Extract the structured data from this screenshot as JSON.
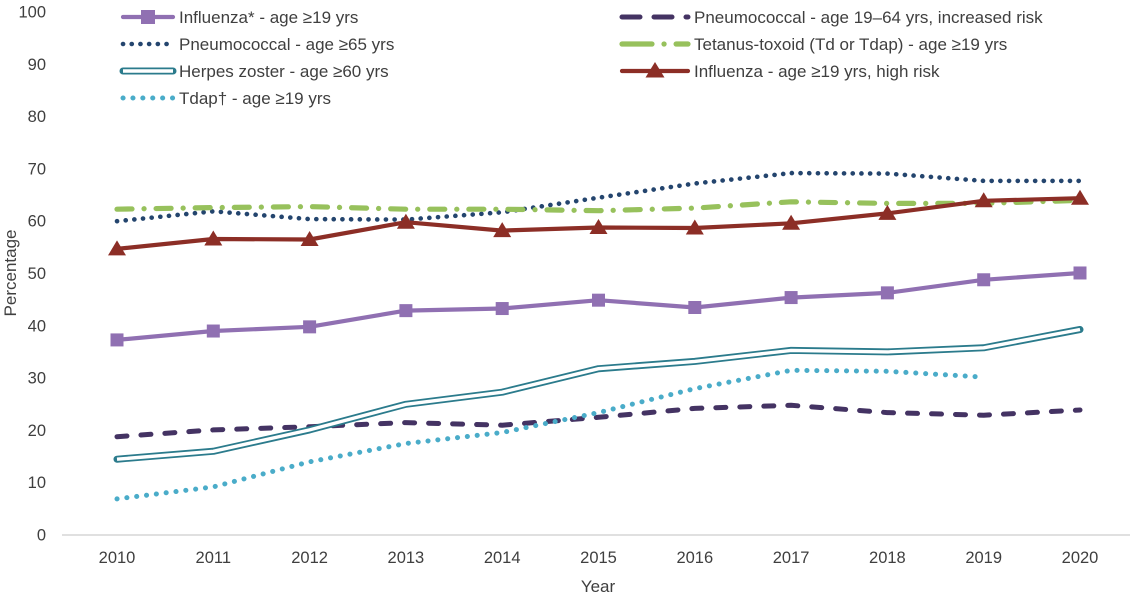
{
  "chart_data": {
    "type": "line",
    "title": "",
    "xlabel": "Year",
    "ylabel": "Percentage",
    "x": [
      2010,
      2011,
      2012,
      2013,
      2014,
      2015,
      2016,
      2017,
      2018,
      2019,
      2020
    ],
    "ylim": [
      0,
      100
    ],
    "yticks": [
      0,
      10,
      20,
      30,
      40,
      50,
      60,
      70,
      80,
      90,
      100
    ],
    "grid": false,
    "legend_position": "top-two-columns",
    "axis_color": "#D6D6D6",
    "text_color": "#3F3F3F",
    "series": [
      {
        "name": "Influenza* - age ≥19 yrs",
        "color": "#9070B2",
        "line_style": "solid",
        "marker": "square",
        "z": 4,
        "values": [
          37.3,
          39.0,
          39.8,
          42.9,
          43.3,
          44.9,
          43.5,
          45.4,
          46.3,
          48.8,
          50.1
        ]
      },
      {
        "name": "Pneumococcal - age ≥65 yrs",
        "color": "#24456E",
        "line_style": "round-dot",
        "marker": "none",
        "z": 1,
        "values": [
          60.0,
          61.9,
          60.4,
          60.3,
          61.7,
          64.5,
          67.2,
          69.2,
          69.1,
          67.7,
          67.7
        ]
      },
      {
        "name": "Herpes zoster - age ≥60 yrs",
        "color": "#2B7B8C",
        "line_style": "double-line",
        "marker": "none",
        "z": 6,
        "values": [
          14.5,
          16.0,
          20.1,
          25.0,
          27.3,
          31.8,
          33.2,
          35.3,
          35.0,
          35.8,
          39.3
        ]
      },
      {
        "name": "Tdap† - age ≥19 yrs",
        "color": "#4AACC9",
        "line_style": "round-dot-large",
        "marker": "none",
        "z": 7,
        "values": [
          6.9,
          9.2,
          14.0,
          17.5,
          19.6,
          23.4,
          28.0,
          31.5,
          31.3,
          30.2,
          null
        ]
      },
      {
        "name": "Pneumococcal - age 19–64 yrs, increased risk",
        "color": "#443363",
        "line_style": "dash",
        "marker": "none",
        "z": 5,
        "values": [
          18.8,
          20.1,
          20.7,
          21.5,
          21.0,
          22.5,
          24.2,
          24.8,
          23.4,
          22.9,
          23.9
        ]
      },
      {
        "name": "Tetanus-toxoid (Td or Tdap) - age ≥19 yrs",
        "color": "#97C15C",
        "line_style": "dash-dot",
        "marker": "none",
        "z": 2,
        "values": [
          62.3,
          62.6,
          62.8,
          62.3,
          62.3,
          62.0,
          62.5,
          63.7,
          63.4,
          63.4,
          64.0
        ]
      },
      {
        "name": "Influenza - age ≥19 yrs, high risk",
        "color": "#8C2E26",
        "line_style": "solid",
        "marker": "triangle",
        "z": 3,
        "values": [
          54.7,
          56.6,
          56.5,
          59.8,
          58.2,
          58.8,
          58.7,
          59.6,
          61.5,
          63.9,
          64.4
        ]
      }
    ],
    "legend_columns": [
      [
        "Influenza* - age ≥19 yrs",
        "Pneumococcal - age ≥65 yrs",
        "Herpes zoster - age ≥60 yrs",
        "Tdap† - age ≥19 yrs"
      ],
      [
        "Pneumococcal - age 19–64 yrs, increased risk",
        "Tetanus-toxoid (Td or Tdap) - age ≥19 yrs",
        "Influenza - age ≥19 yrs, high risk"
      ]
    ]
  }
}
